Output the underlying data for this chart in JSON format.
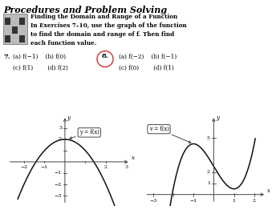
{
  "title": "Procedures and Problem Solving",
  "sub1": "Finding the Domain and Range of a Function",
  "sub2": "In Exercises 7–10, use the graph of the function",
  "sub3": "to find the domain and range of f. Then find",
  "sub4": "each function value.",
  "ex7a": "7.  (a) f(−1)    (b) f(0)",
  "ex7b": "    (c) f(1)       (d) f(2)",
  "ex8_num": "8.",
  "ex8a": "(a) f(−2)    (b) f(−1)",
  "ex8b": "(c) f(0)       (d) f(1)",
  "graph1_label": "y = f(x)",
  "graph2_label": "v = f(x)",
  "curve_color": "#111111",
  "axis_color": "#444444",
  "circle_color": "#cc3333"
}
